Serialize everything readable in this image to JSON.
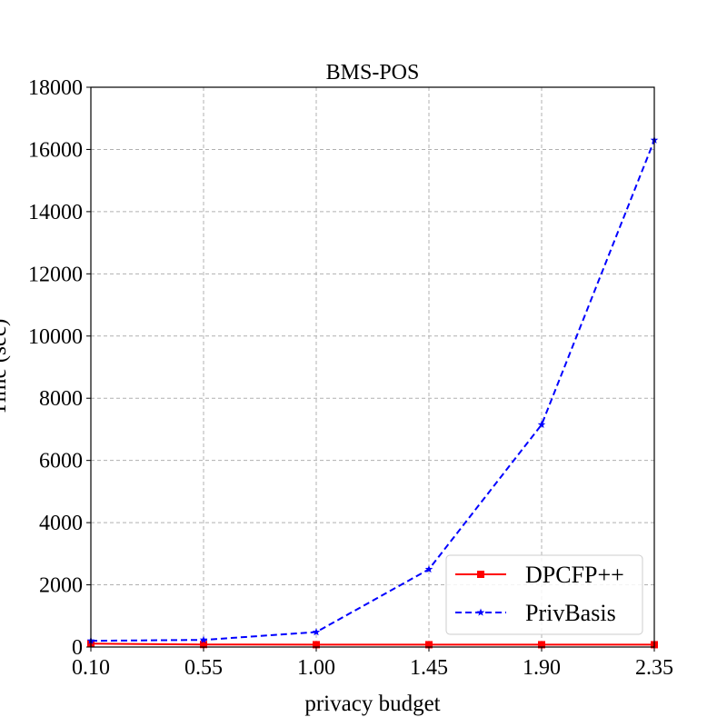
{
  "chart_data": {
    "type": "line",
    "title": "BMS-POS",
    "xlabel": "privacy budget",
    "ylabel": "Time (sec)",
    "x": [
      "0.10",
      "0.55",
      "1.00",
      "1.45",
      "1.90",
      "2.35"
    ],
    "xlim": [
      0.1,
      2.35
    ],
    "ylim": [
      0,
      18000
    ],
    "yticks": [
      0,
      2000,
      4000,
      6000,
      8000,
      10000,
      12000,
      14000,
      16000,
      18000
    ],
    "grid": true,
    "legend_position": "lower-right",
    "series": [
      {
        "name": "DPCFP++",
        "color": "#ff0000",
        "marker": "square",
        "linestyle": "solid",
        "values": [
          110,
          80,
          75,
          75,
          75,
          75
        ]
      },
      {
        "name": "PrivBasis",
        "color": "#0000ff",
        "marker": "star",
        "linestyle": "dashed",
        "values": [
          200,
          230,
          480,
          2500,
          7150,
          16300
        ]
      }
    ]
  }
}
